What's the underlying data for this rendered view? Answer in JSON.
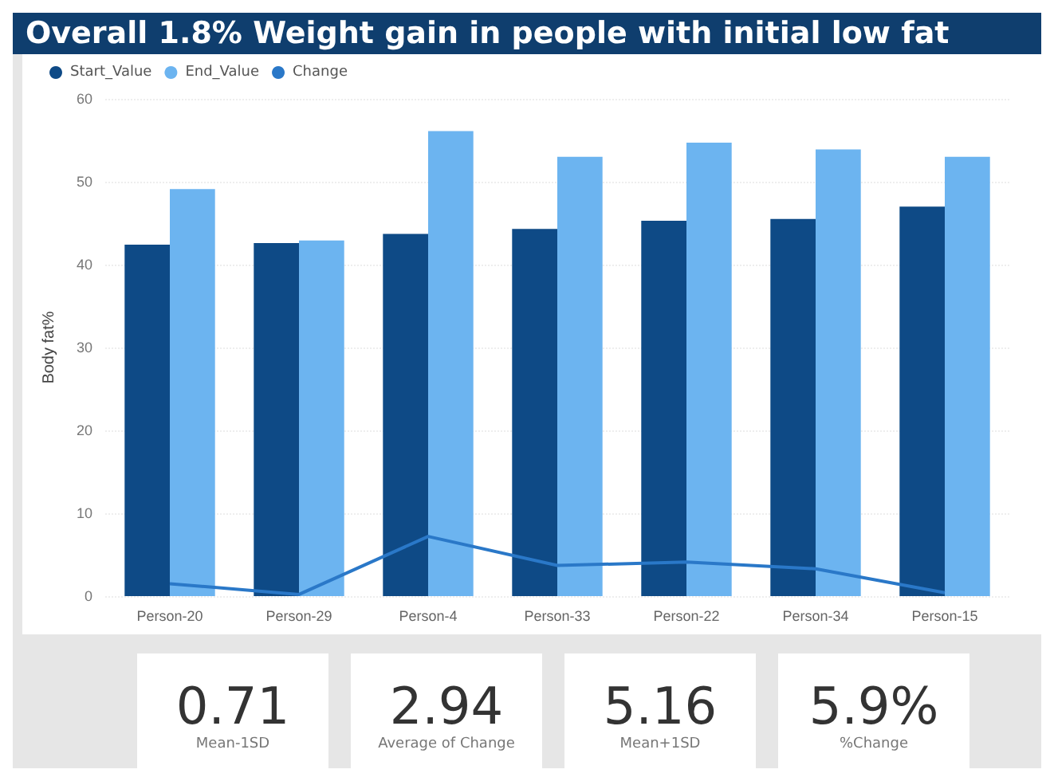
{
  "chart_data": {
    "type": "bar",
    "title": "Overall 1.8% Weight gain in people with initial low fat",
    "ylabel": "Body fat%",
    "categories": [
      "Person-20",
      "Person-29",
      "Person-4",
      "Person-33",
      "Person-22",
      "Person-34",
      "Person-15"
    ],
    "series": [
      {
        "name": "Start_Value",
        "color": "#0e4a86",
        "values": [
          42.4,
          42.6,
          43.7,
          44.3,
          45.3,
          45.5,
          47.0
        ]
      },
      {
        "name": "End_Value",
        "color": "#6cb4f0",
        "values": [
          49.1,
          42.9,
          56.1,
          53.0,
          54.7,
          53.9,
          53.0
        ]
      },
      {
        "name": "Change",
        "type": "line",
        "color": "#2a78c8",
        "values": [
          1.5,
          0.2,
          7.2,
          3.7,
          4.1,
          3.3,
          0.4
        ]
      }
    ],
    "ylim": [
      0,
      60
    ],
    "yticks": [
      0,
      10,
      20,
      30,
      40,
      50,
      60
    ],
    "grid": "y",
    "legend": "top left",
    "marker": "none",
    "annotations": [
      "0.71",
      "Mean-1SD",
      "2.94",
      "Average of Change",
      "5.16",
      "Mean+1SD",
      "5.9%",
      "%Change"
    ]
  }
}
